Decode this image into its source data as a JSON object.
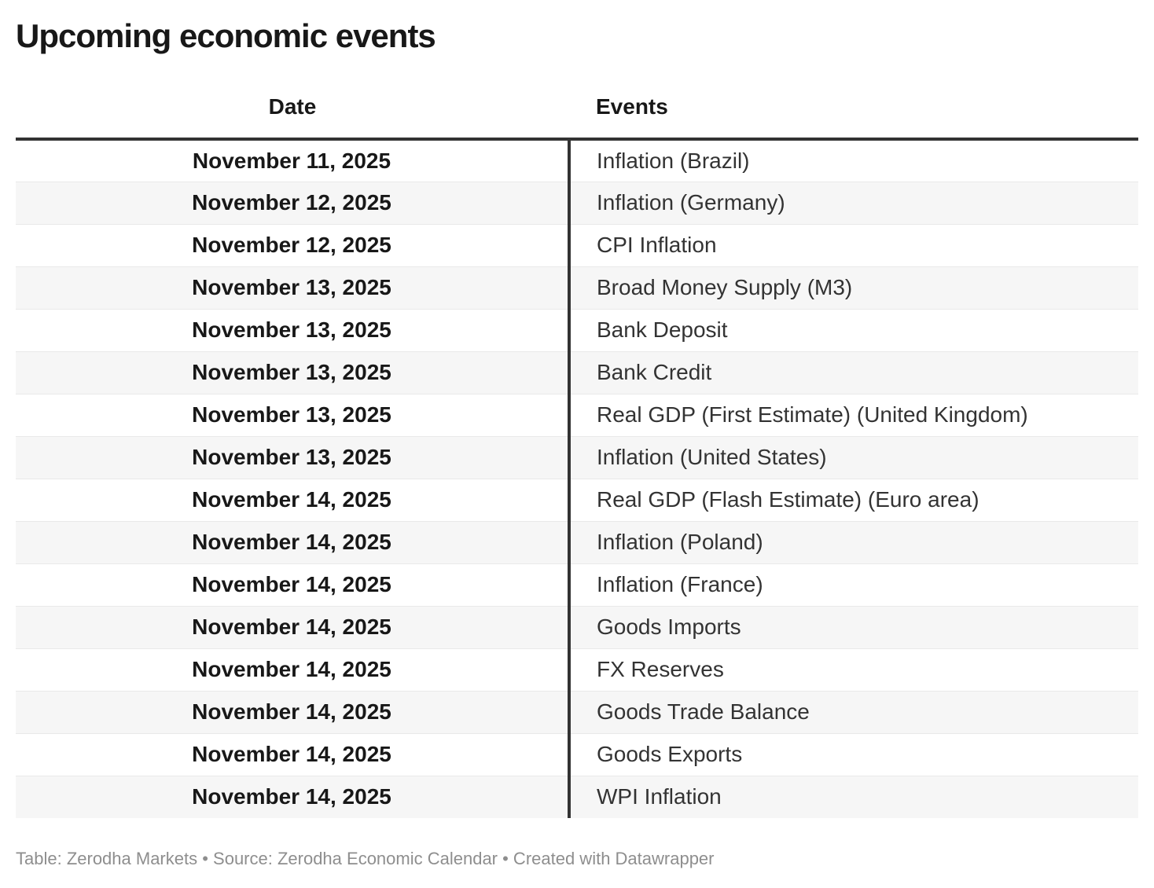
{
  "chart_data": {
    "type": "table",
    "title": "Upcoming economic events",
    "columns": [
      "Date",
      "Events"
    ],
    "rows": [
      [
        "November 11, 2025",
        "Inflation (Brazil)"
      ],
      [
        "November 12, 2025",
        "Inflation (Germany)"
      ],
      [
        "November 12, 2025",
        "CPI Inflation"
      ],
      [
        "November 13, 2025",
        "Broad Money Supply (M3)"
      ],
      [
        "November 13, 2025",
        "Bank Deposit"
      ],
      [
        "November 13, 2025",
        "Bank Credit"
      ],
      [
        "November 13, 2025",
        "Real GDP (First Estimate) (United Kingdom)"
      ],
      [
        "November 13, 2025",
        "Inflation (United States)"
      ],
      [
        "November 14, 2025",
        "Real GDP (Flash Estimate) (Euro area)"
      ],
      [
        "November 14, 2025",
        "Inflation (Poland)"
      ],
      [
        "November 14, 2025",
        "Inflation (France)"
      ],
      [
        "November 14, 2025",
        "Goods Imports"
      ],
      [
        "November 14, 2025",
        "FX Reserves"
      ],
      [
        "November 14, 2025",
        "Goods Trade Balance"
      ],
      [
        "November 14, 2025",
        "Goods Exports"
      ],
      [
        "November 14, 2025",
        "WPI Inflation"
      ]
    ],
    "layout": {
      "date_column_align": "center",
      "events_column_align": "left",
      "striped_rows": true
    }
  },
  "footer": {
    "text": "Table: Zerodha Markets • Source: Zerodha Economic Calendar • Created with Datawrapper"
  },
  "colors": {
    "text_dark": "#181818",
    "text_body": "#333333",
    "rule_dark": "#333333",
    "row_stripe": "#f6f6f6",
    "row_separator": "#e9e9e9",
    "footer_gray": "#8e8e8e"
  }
}
